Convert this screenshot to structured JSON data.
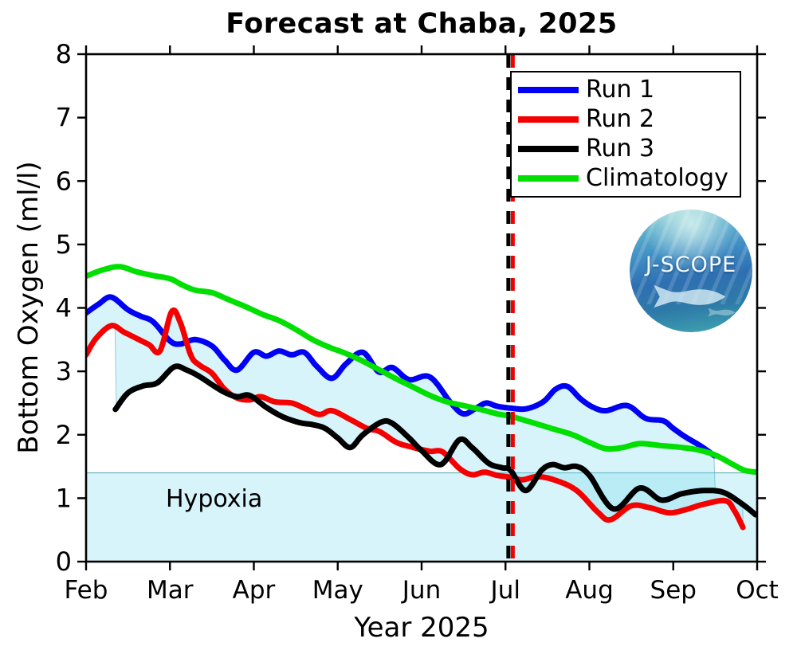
{
  "figure": {
    "title": "Forecast at Chaba, 2025"
  },
  "axes": {
    "xlabel": "Year 2025",
    "ylabel": "Bottom Oxygen (ml/l)"
  },
  "annotations": {
    "hypoxia_label": "Hypoxia"
  },
  "logo": {
    "text": "J-SCOPE"
  },
  "chart_data": {
    "type": "line",
    "title": "Forecast at Chaba, 2025",
    "xlabel": "Year 2025",
    "ylabel": "Bottom Oxygen (ml/l)",
    "x_unit": "months since Feb 1 2025 (0=Feb, 8=Oct)",
    "xlim": [
      0,
      8
    ],
    "ylim": [
      0,
      8
    ],
    "x_tick_labels": [
      "Feb",
      "Mar",
      "Apr",
      "May",
      "Jun",
      "Jul",
      "Aug",
      "Sep",
      "Oct"
    ],
    "y_tick_labels": [
      "0",
      "1",
      "2",
      "3",
      "4",
      "5",
      "6",
      "7",
      "8"
    ],
    "grid": false,
    "legend_position": "upper right inside axes",
    "hypoxia": {
      "label": "Hypoxia",
      "threshold_ml_per_l": 1.4,
      "fill": "rgba(120,220,235,0.30)",
      "stroke": "rgba(90,165,180,0.85)"
    },
    "forecast_line": {
      "month": 5.06,
      "style": "dashed vertical",
      "colors": [
        "#000000",
        "#f00000"
      ]
    },
    "band": {
      "description": "min-max envelope of Runs 1-3",
      "end_month": 7.83,
      "fill": "rgba(120,220,235,0.30)",
      "stroke": "rgba(90,165,180,0.55)"
    },
    "series": [
      {
        "name": "Run 1",
        "color": "#0000f5",
        "points": [
          [
            0,
            3.92
          ],
          [
            0.15,
            4.06
          ],
          [
            0.3,
            4.17
          ],
          [
            0.5,
            3.97
          ],
          [
            0.65,
            3.87
          ],
          [
            0.8,
            3.78
          ],
          [
            1.0,
            3.48
          ],
          [
            1.12,
            3.43
          ],
          [
            1.3,
            3.5
          ],
          [
            1.5,
            3.4
          ],
          [
            1.65,
            3.18
          ],
          [
            1.8,
            3.02
          ],
          [
            2.0,
            3.3
          ],
          [
            2.15,
            3.24
          ],
          [
            2.3,
            3.32
          ],
          [
            2.45,
            3.26
          ],
          [
            2.6,
            3.3
          ],
          [
            2.75,
            3.08
          ],
          [
            2.93,
            2.89
          ],
          [
            3.1,
            3.12
          ],
          [
            3.3,
            3.3
          ],
          [
            3.49,
            2.99
          ],
          [
            3.65,
            3.06
          ],
          [
            3.85,
            2.87
          ],
          [
            4.1,
            2.91
          ],
          [
            4.35,
            2.5
          ],
          [
            4.5,
            2.33
          ],
          [
            4.65,
            2.42
          ],
          [
            4.77,
            2.5
          ],
          [
            4.9,
            2.45
          ],
          [
            5.06,
            2.42
          ],
          [
            5.25,
            2.41
          ],
          [
            5.45,
            2.52
          ],
          [
            5.6,
            2.72
          ],
          [
            5.74,
            2.76
          ],
          [
            5.9,
            2.56
          ],
          [
            6.05,
            2.43
          ],
          [
            6.2,
            2.38
          ],
          [
            6.45,
            2.46
          ],
          [
            6.67,
            2.26
          ],
          [
            6.88,
            2.22
          ],
          [
            7.0,
            2.1
          ],
          [
            7.14,
            1.97
          ],
          [
            7.33,
            1.82
          ],
          [
            7.49,
            1.67
          ]
        ]
      },
      {
        "name": "Run 2",
        "color": "#f50000",
        "points": [
          [
            0,
            3.26
          ],
          [
            0.12,
            3.52
          ],
          [
            0.3,
            3.72
          ],
          [
            0.45,
            3.62
          ],
          [
            0.6,
            3.52
          ],
          [
            0.75,
            3.42
          ],
          [
            0.88,
            3.32
          ],
          [
            1.02,
            3.94
          ],
          [
            1.12,
            3.78
          ],
          [
            1.25,
            3.25
          ],
          [
            1.35,
            3.1
          ],
          [
            1.5,
            2.97
          ],
          [
            1.65,
            2.72
          ],
          [
            1.8,
            2.58
          ],
          [
            1.95,
            2.55
          ],
          [
            2.08,
            2.6
          ],
          [
            2.25,
            2.52
          ],
          [
            2.45,
            2.5
          ],
          [
            2.6,
            2.42
          ],
          [
            2.78,
            2.32
          ],
          [
            2.93,
            2.38
          ],
          [
            3.15,
            2.24
          ],
          [
            3.35,
            2.1
          ],
          [
            3.5,
            2.05
          ],
          [
            3.7,
            1.88
          ],
          [
            3.9,
            1.8
          ],
          [
            4.1,
            1.74
          ],
          [
            4.25,
            1.73
          ],
          [
            4.45,
            1.47
          ],
          [
            4.6,
            1.37
          ],
          [
            4.75,
            1.41
          ],
          [
            4.9,
            1.36
          ],
          [
            5.06,
            1.33
          ],
          [
            5.2,
            1.29
          ],
          [
            5.38,
            1.34
          ],
          [
            5.6,
            1.28
          ],
          [
            5.85,
            1.12
          ],
          [
            6.1,
            0.78
          ],
          [
            6.25,
            0.66
          ],
          [
            6.5,
            0.88
          ],
          [
            6.72,
            0.85
          ],
          [
            6.95,
            0.77
          ],
          [
            7.15,
            0.82
          ],
          [
            7.35,
            0.9
          ],
          [
            7.62,
            0.96
          ],
          [
            7.73,
            0.8
          ],
          [
            7.83,
            0.54
          ]
        ]
      },
      {
        "name": "Run 3",
        "color": "#000000",
        "points": [
          [
            0.35,
            2.4
          ],
          [
            0.5,
            2.66
          ],
          [
            0.68,
            2.77
          ],
          [
            0.85,
            2.82
          ],
          [
            1.05,
            3.07
          ],
          [
            1.2,
            3.02
          ],
          [
            1.35,
            2.92
          ],
          [
            1.5,
            2.79
          ],
          [
            1.65,
            2.67
          ],
          [
            1.8,
            2.6
          ],
          [
            1.95,
            2.62
          ],
          [
            2.15,
            2.43
          ],
          [
            2.35,
            2.28
          ],
          [
            2.55,
            2.19
          ],
          [
            2.7,
            2.16
          ],
          [
            2.85,
            2.1
          ],
          [
            3.0,
            1.95
          ],
          [
            3.15,
            1.8
          ],
          [
            3.3,
            2.0
          ],
          [
            3.52,
            2.2
          ],
          [
            3.65,
            2.18
          ],
          [
            3.85,
            1.95
          ],
          [
            4.0,
            1.75
          ],
          [
            4.23,
            1.53
          ],
          [
            4.45,
            1.92
          ],
          [
            4.6,
            1.8
          ],
          [
            4.8,
            1.55
          ],
          [
            4.96,
            1.48
          ],
          [
            5.06,
            1.44
          ],
          [
            5.24,
            1.12
          ],
          [
            5.43,
            1.44
          ],
          [
            5.56,
            1.53
          ],
          [
            5.7,
            1.48
          ],
          [
            5.85,
            1.5
          ],
          [
            6.0,
            1.36
          ],
          [
            6.29,
            0.83
          ],
          [
            6.6,
            1.16
          ],
          [
            6.86,
            0.97
          ],
          [
            7.1,
            1.07
          ],
          [
            7.36,
            1.12
          ],
          [
            7.6,
            1.09
          ],
          [
            7.83,
            0.9
          ],
          [
            7.98,
            0.74
          ]
        ]
      },
      {
        "name": "Climatology",
        "color": "#00df00",
        "points": [
          [
            0,
            4.5
          ],
          [
            0.2,
            4.6
          ],
          [
            0.4,
            4.65
          ],
          [
            0.6,
            4.57
          ],
          [
            0.8,
            4.51
          ],
          [
            1.0,
            4.46
          ],
          [
            1.15,
            4.36
          ],
          [
            1.3,
            4.28
          ],
          [
            1.5,
            4.24
          ],
          [
            1.7,
            4.13
          ],
          [
            1.9,
            4.02
          ],
          [
            2.1,
            3.9
          ],
          [
            2.3,
            3.8
          ],
          [
            2.5,
            3.66
          ],
          [
            2.7,
            3.5
          ],
          [
            2.9,
            3.38
          ],
          [
            3.1,
            3.28
          ],
          [
            3.3,
            3.16
          ],
          [
            3.5,
            3.02
          ],
          [
            3.7,
            2.88
          ],
          [
            3.9,
            2.75
          ],
          [
            4.1,
            2.62
          ],
          [
            4.3,
            2.52
          ],
          [
            4.5,
            2.46
          ],
          [
            4.7,
            2.4
          ],
          [
            4.9,
            2.33
          ],
          [
            5.06,
            2.29
          ],
          [
            5.3,
            2.2
          ],
          [
            5.55,
            2.1
          ],
          [
            5.8,
            2.0
          ],
          [
            6.0,
            1.88
          ],
          [
            6.2,
            1.78
          ],
          [
            6.4,
            1.8
          ],
          [
            6.6,
            1.86
          ],
          [
            6.85,
            1.83
          ],
          [
            7.1,
            1.8
          ],
          [
            7.3,
            1.76
          ],
          [
            7.5,
            1.68
          ],
          [
            7.7,
            1.54
          ],
          [
            7.85,
            1.44
          ],
          [
            8.0,
            1.41
          ]
        ]
      }
    ]
  }
}
